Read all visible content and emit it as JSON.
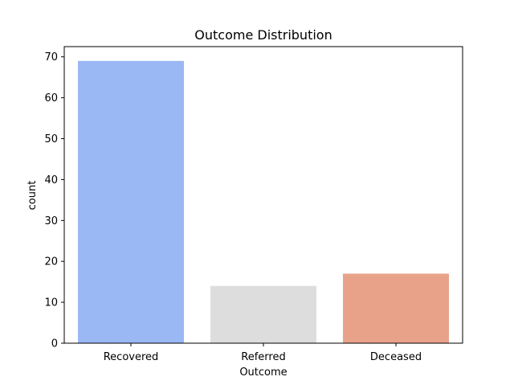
{
  "chart_data": {
    "type": "bar",
    "title": "Outcome Distribution",
    "xlabel": "Outcome",
    "ylabel": "count",
    "categories": [
      "Recovered",
      "Referred",
      "Deceased"
    ],
    "values": [
      69,
      14,
      17
    ],
    "colors": [
      "#9ab8f4",
      "#dddddd",
      "#e8a28a"
    ],
    "ylim": [
      0,
      72.5
    ],
    "yticks": [
      0,
      10,
      20,
      30,
      40,
      50,
      60,
      70
    ],
    "grid": false,
    "legend": "none"
  }
}
